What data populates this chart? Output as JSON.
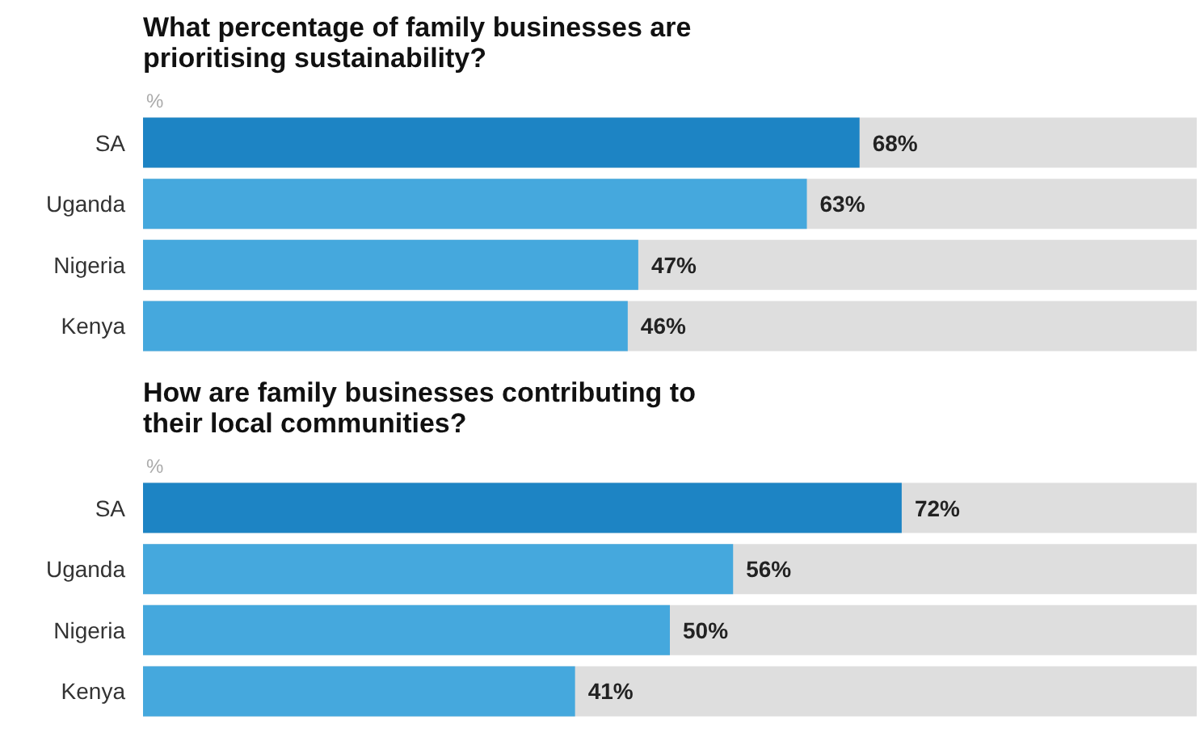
{
  "chart_data": [
    {
      "type": "bar",
      "orientation": "horizontal",
      "title": "What percentage of family businesses are prioritising sustainability?",
      "xlabel": "%",
      "categories": [
        "SA",
        "Uganda",
        "Nigeria",
        "Kenya"
      ],
      "values": [
        68,
        63,
        47,
        46
      ],
      "value_labels": [
        "68%",
        "63%",
        "47%",
        "46%"
      ],
      "colors": [
        "#1d84c4",
        "#45a8dd",
        "#45a8dd",
        "#45a8dd"
      ],
      "bands": [
        {
          "axis": "x",
          "from": 0,
          "to": 100,
          "color": "#dedede"
        }
      ],
      "tick_labels": "y"
    },
    {
      "type": "bar",
      "orientation": "horizontal",
      "title": "How are family businesses contributing to their local communities?",
      "xlabel": "%",
      "categories": [
        "SA",
        "Uganda",
        "Nigeria",
        "Kenya"
      ],
      "values": [
        72,
        56,
        50,
        41
      ],
      "value_labels": [
        "72%",
        "56%",
        "50%",
        "41%"
      ],
      "colors": [
        "#1d84c4",
        "#45a8dd",
        "#45a8dd",
        "#45a8dd"
      ],
      "bands": [
        {
          "axis": "x",
          "from": 0,
          "to": 100,
          "color": "#dedede"
        }
      ],
      "tick_labels": "y"
    }
  ]
}
